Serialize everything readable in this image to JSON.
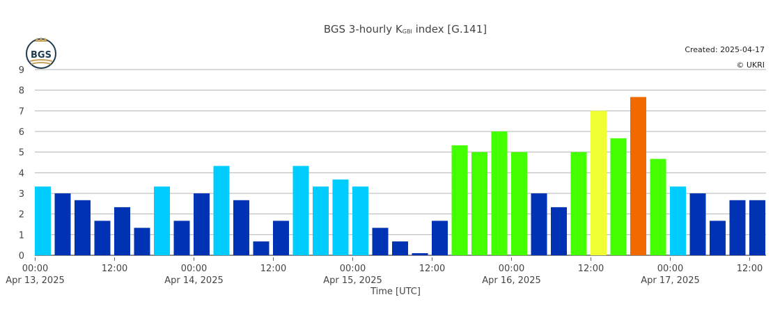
{
  "chart_data": {
    "type": "bar",
    "title": {
      "prefix": "BGS 3-hourly K",
      "subscript": "GBI",
      "suffix": " index [G.141]"
    },
    "logo_text": "BGS",
    "created": "Created: 2025-04-17",
    "copyright": "© UKRI",
    "xlabel": "Time [UTC]",
    "ylabel": "",
    "ylim": [
      0,
      9
    ],
    "yticks": [
      0,
      1,
      2,
      3,
      4,
      5,
      6,
      7,
      8,
      9
    ],
    "grid": true,
    "x_start": "2025-04-13 00:00",
    "interval_hours": 3,
    "xticks": [
      {
        "line1": "00:00",
        "line2": "Apr 13, 2025",
        "hour": 0
      },
      {
        "line1": "12:00",
        "line2": "",
        "hour": 12
      },
      {
        "line1": "00:00",
        "line2": "Apr 14, 2025",
        "hour": 24
      },
      {
        "line1": "12:00",
        "line2": "",
        "hour": 36
      },
      {
        "line1": "00:00",
        "line2": "Apr 15, 2025",
        "hour": 48
      },
      {
        "line1": "12:00",
        "line2": "",
        "hour": 60
      },
      {
        "line1": "00:00",
        "line2": "Apr 16, 2025",
        "hour": 72
      },
      {
        "line1": "12:00",
        "line2": "",
        "hour": 84
      },
      {
        "line1": "00:00",
        "line2": "Apr 17, 2025",
        "hour": 96
      },
      {
        "line1": "12:00",
        "line2": "",
        "hour": 108
      }
    ],
    "values": [
      3.33,
      3.0,
      2.67,
      1.67,
      2.33,
      1.33,
      3.33,
      1.67,
      3.0,
      4.33,
      2.67,
      0.67,
      1.67,
      4.33,
      3.33,
      3.67,
      3.33,
      1.33,
      0.67,
      0.0,
      1.67,
      5.33,
      5.0,
      6.0,
      5.0,
      3.0,
      2.33,
      5.0,
      7.0,
      5.67,
      7.67,
      4.67,
      3.33,
      3.0,
      1.67,
      2.67,
      2.67
    ],
    "colors": [
      "#00ccff",
      "#0033b3",
      "#0033b3",
      "#0033b3",
      "#0033b3",
      "#0033b3",
      "#00ccff",
      "#0033b3",
      "#0033b3",
      "#00ccff",
      "#0033b3",
      "#0033b3",
      "#0033b3",
      "#00ccff",
      "#00ccff",
      "#00ccff",
      "#00ccff",
      "#0033b3",
      "#0033b3",
      "#0033b3",
      "#0033b3",
      "#44ff00",
      "#44ff00",
      "#44ff00",
      "#44ff00",
      "#0033b3",
      "#0033b3",
      "#44ff00",
      "#f0ff33",
      "#44ff00",
      "#f06a00",
      "#44ff00",
      "#00ccff",
      "#0033b3",
      "#0033b3",
      "#0033b3",
      "#0033b3"
    ]
  }
}
